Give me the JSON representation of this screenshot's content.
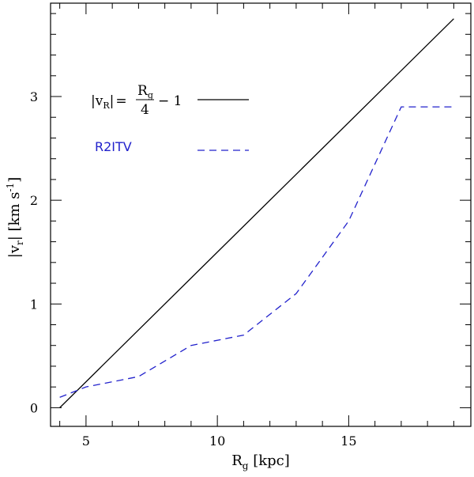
{
  "chart_data": {
    "type": "line",
    "xlabel": "R_g [kpc]",
    "xlabel_main": "R",
    "xlabel_sub": "g",
    "xlabel_rest": " [kpc]",
    "ylabel": "|v_r| [km s^-1]",
    "ylabel_left": "|v",
    "ylabel_sub": "r",
    "ylabel_mid": "| [km s",
    "ylabel_sup": "-1",
    "ylabel_close": "]",
    "xlim": [
      3.65,
      19.65
    ],
    "ylim": [
      -0.18,
      3.9
    ],
    "xticks_major": [
      5,
      10,
      15
    ],
    "xtick_labels": [
      "5",
      "10",
      "15"
    ],
    "xticks_minor_step": 1,
    "yticks_major": [
      0,
      1,
      2,
      3
    ],
    "ytick_labels": [
      "0",
      "1",
      "2",
      "3"
    ],
    "yticks_minor_step": 0.2,
    "series": [
      {
        "name": "|vR| = Rg/4 - 1",
        "color": "#000000",
        "style": "solid",
        "x": [
          4,
          19
        ],
        "y": [
          0,
          3.75
        ]
      },
      {
        "name": "R2ITV",
        "color": "#2222cc",
        "style": "dashed",
        "x": [
          4,
          5,
          7,
          9,
          11,
          13,
          15,
          17,
          19
        ],
        "y": [
          0.1,
          0.2,
          0.3,
          0.6,
          0.7,
          1.1,
          1.8,
          2.9,
          2.9
        ]
      }
    ],
    "legend": {
      "placement": "top-left",
      "formula": {
        "lhs_open": "|v",
        "lhs_sub": "R",
        "lhs_close": "|",
        "equals": "=",
        "numerator": "R",
        "numerator_sub": "g",
        "denominator": "4",
        "tail": "− 1"
      },
      "dashed_label": "R2ITV"
    }
  }
}
